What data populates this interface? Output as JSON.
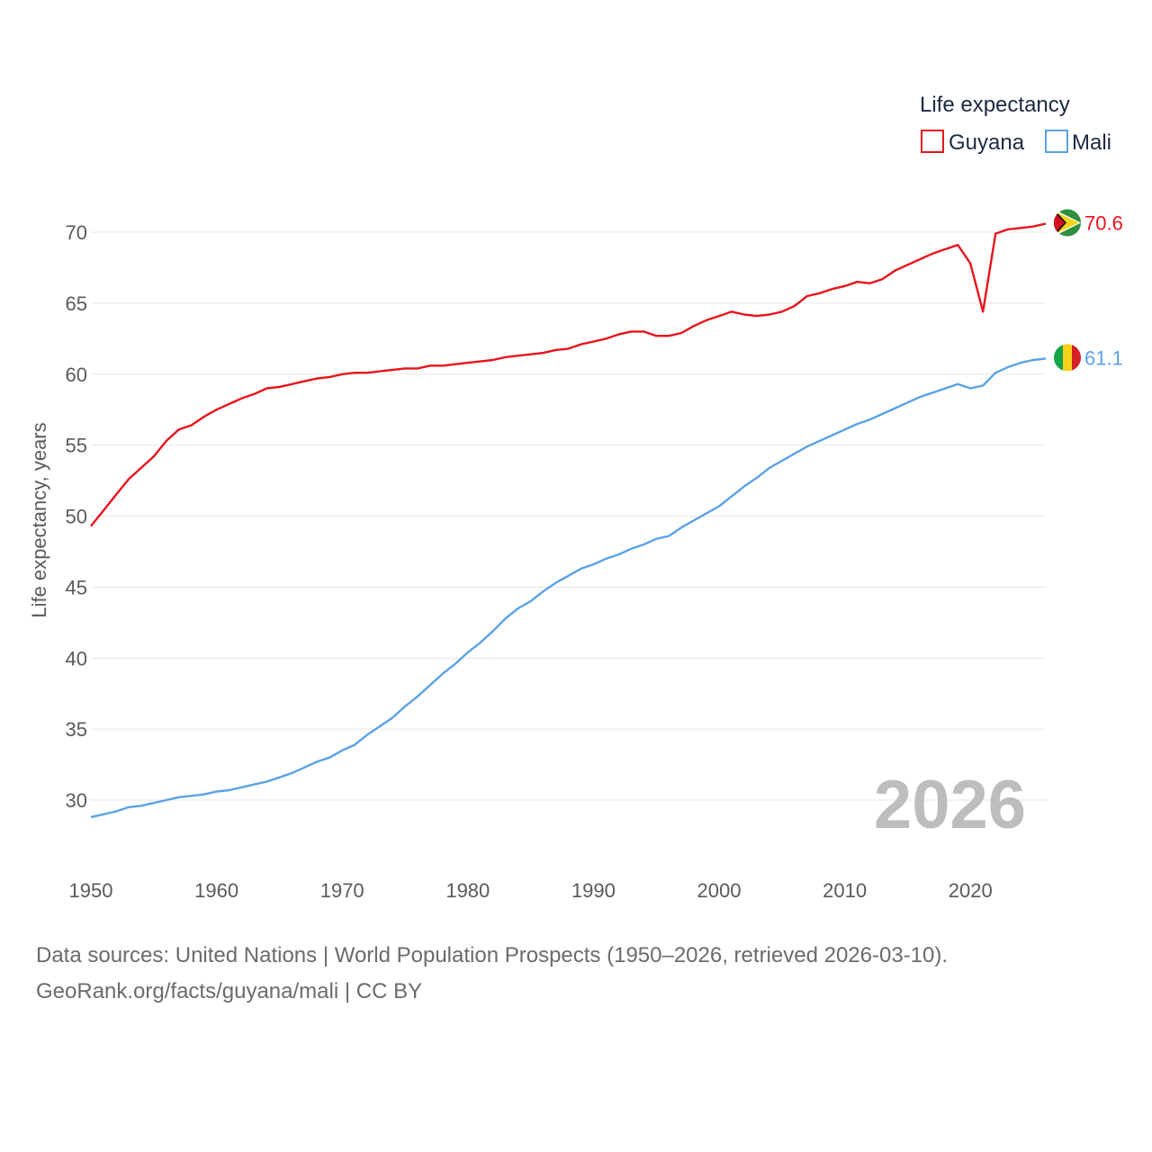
{
  "chart_data": {
    "type": "line",
    "title": "",
    "legend_title": "Life expectancy",
    "xlabel": "",
    "ylabel": "Life expectancy, years",
    "xlim": [
      1950,
      2026
    ],
    "ylim": [
      27.5,
      72
    ],
    "x_ticks": [
      1950,
      1960,
      1970,
      1980,
      1990,
      2000,
      2010,
      2020
    ],
    "y_ticks": [
      30,
      35,
      40,
      45,
      50,
      55,
      60,
      65,
      70
    ],
    "grid": true,
    "legend_position": "top-right",
    "annotation_year": "2026",
    "x": [
      1950,
      1951,
      1952,
      1953,
      1954,
      1955,
      1956,
      1957,
      1958,
      1959,
      1960,
      1961,
      1962,
      1963,
      1964,
      1965,
      1966,
      1967,
      1968,
      1969,
      1970,
      1971,
      1972,
      1973,
      1974,
      1975,
      1976,
      1977,
      1978,
      1979,
      1980,
      1981,
      1982,
      1983,
      1984,
      1985,
      1986,
      1987,
      1988,
      1989,
      1990,
      1991,
      1992,
      1993,
      1994,
      1995,
      1996,
      1997,
      1998,
      1999,
      2000,
      2001,
      2002,
      2003,
      2004,
      2005,
      2006,
      2007,
      2008,
      2009,
      2010,
      2011,
      2012,
      2013,
      2014,
      2015,
      2016,
      2017,
      2018,
      2019,
      2020,
      2021,
      2022,
      2023,
      2024,
      2025,
      2026
    ],
    "series": [
      {
        "name": "Guyana",
        "color": "#e8141c",
        "end_label": "70.6",
        "flag_icon": "guyana-flag-icon",
        "values": [
          49.3,
          50.4,
          51.5,
          52.6,
          53.4,
          54.2,
          55.3,
          56.1,
          56.4,
          57.0,
          57.5,
          57.9,
          58.3,
          58.6,
          59.0,
          59.1,
          59.3,
          59.5,
          59.7,
          59.8,
          60.0,
          60.1,
          60.1,
          60.2,
          60.3,
          60.4,
          60.4,
          60.6,
          60.6,
          60.7,
          60.8,
          60.9,
          61.0,
          61.2,
          61.3,
          61.4,
          61.5,
          61.7,
          61.8,
          62.1,
          62.3,
          62.5,
          62.8,
          63.0,
          63.0,
          62.7,
          62.7,
          62.9,
          63.4,
          63.8,
          64.1,
          64.4,
          64.2,
          64.1,
          64.2,
          64.4,
          64.8,
          65.5,
          65.7,
          66.0,
          66.2,
          66.5,
          66.4,
          66.7,
          67.3,
          67.7,
          68.1,
          68.5,
          68.8,
          69.1,
          67.8,
          64.4,
          69.9,
          70.2,
          70.3,
          70.4,
          70.6
        ]
      },
      {
        "name": "Mali",
        "color": "#5ba2e6",
        "end_label": "61.1",
        "flag_icon": "mali-flag-icon",
        "values": [
          28.8,
          29.0,
          29.2,
          29.5,
          29.6,
          29.8,
          30.0,
          30.2,
          30.3,
          30.4,
          30.6,
          30.7,
          30.9,
          31.1,
          31.3,
          31.6,
          31.9,
          32.3,
          32.7,
          33.0,
          33.5,
          33.9,
          34.6,
          35.2,
          35.8,
          36.6,
          37.3,
          38.1,
          38.9,
          39.6,
          40.4,
          41.1,
          41.9,
          42.8,
          43.5,
          44.0,
          44.7,
          45.3,
          45.8,
          46.3,
          46.6,
          47.0,
          47.3,
          47.7,
          48.0,
          48.4,
          48.6,
          49.2,
          49.7,
          50.2,
          50.7,
          51.4,
          52.1,
          52.7,
          53.4,
          53.9,
          54.4,
          54.9,
          55.3,
          55.7,
          56.1,
          56.5,
          56.8,
          57.2,
          57.6,
          58.0,
          58.4,
          58.7,
          59.0,
          59.3,
          59.0,
          59.2,
          60.1,
          60.5,
          60.8,
          61.0,
          61.1
        ]
      }
    ]
  },
  "footer": {
    "source_line": "Data sources: United Nations | World Population Prospects (1950–2026, retrieved 2026-03-10).",
    "credit_line": "GeoRank.org/facts/guyana/mali | CC BY"
  }
}
